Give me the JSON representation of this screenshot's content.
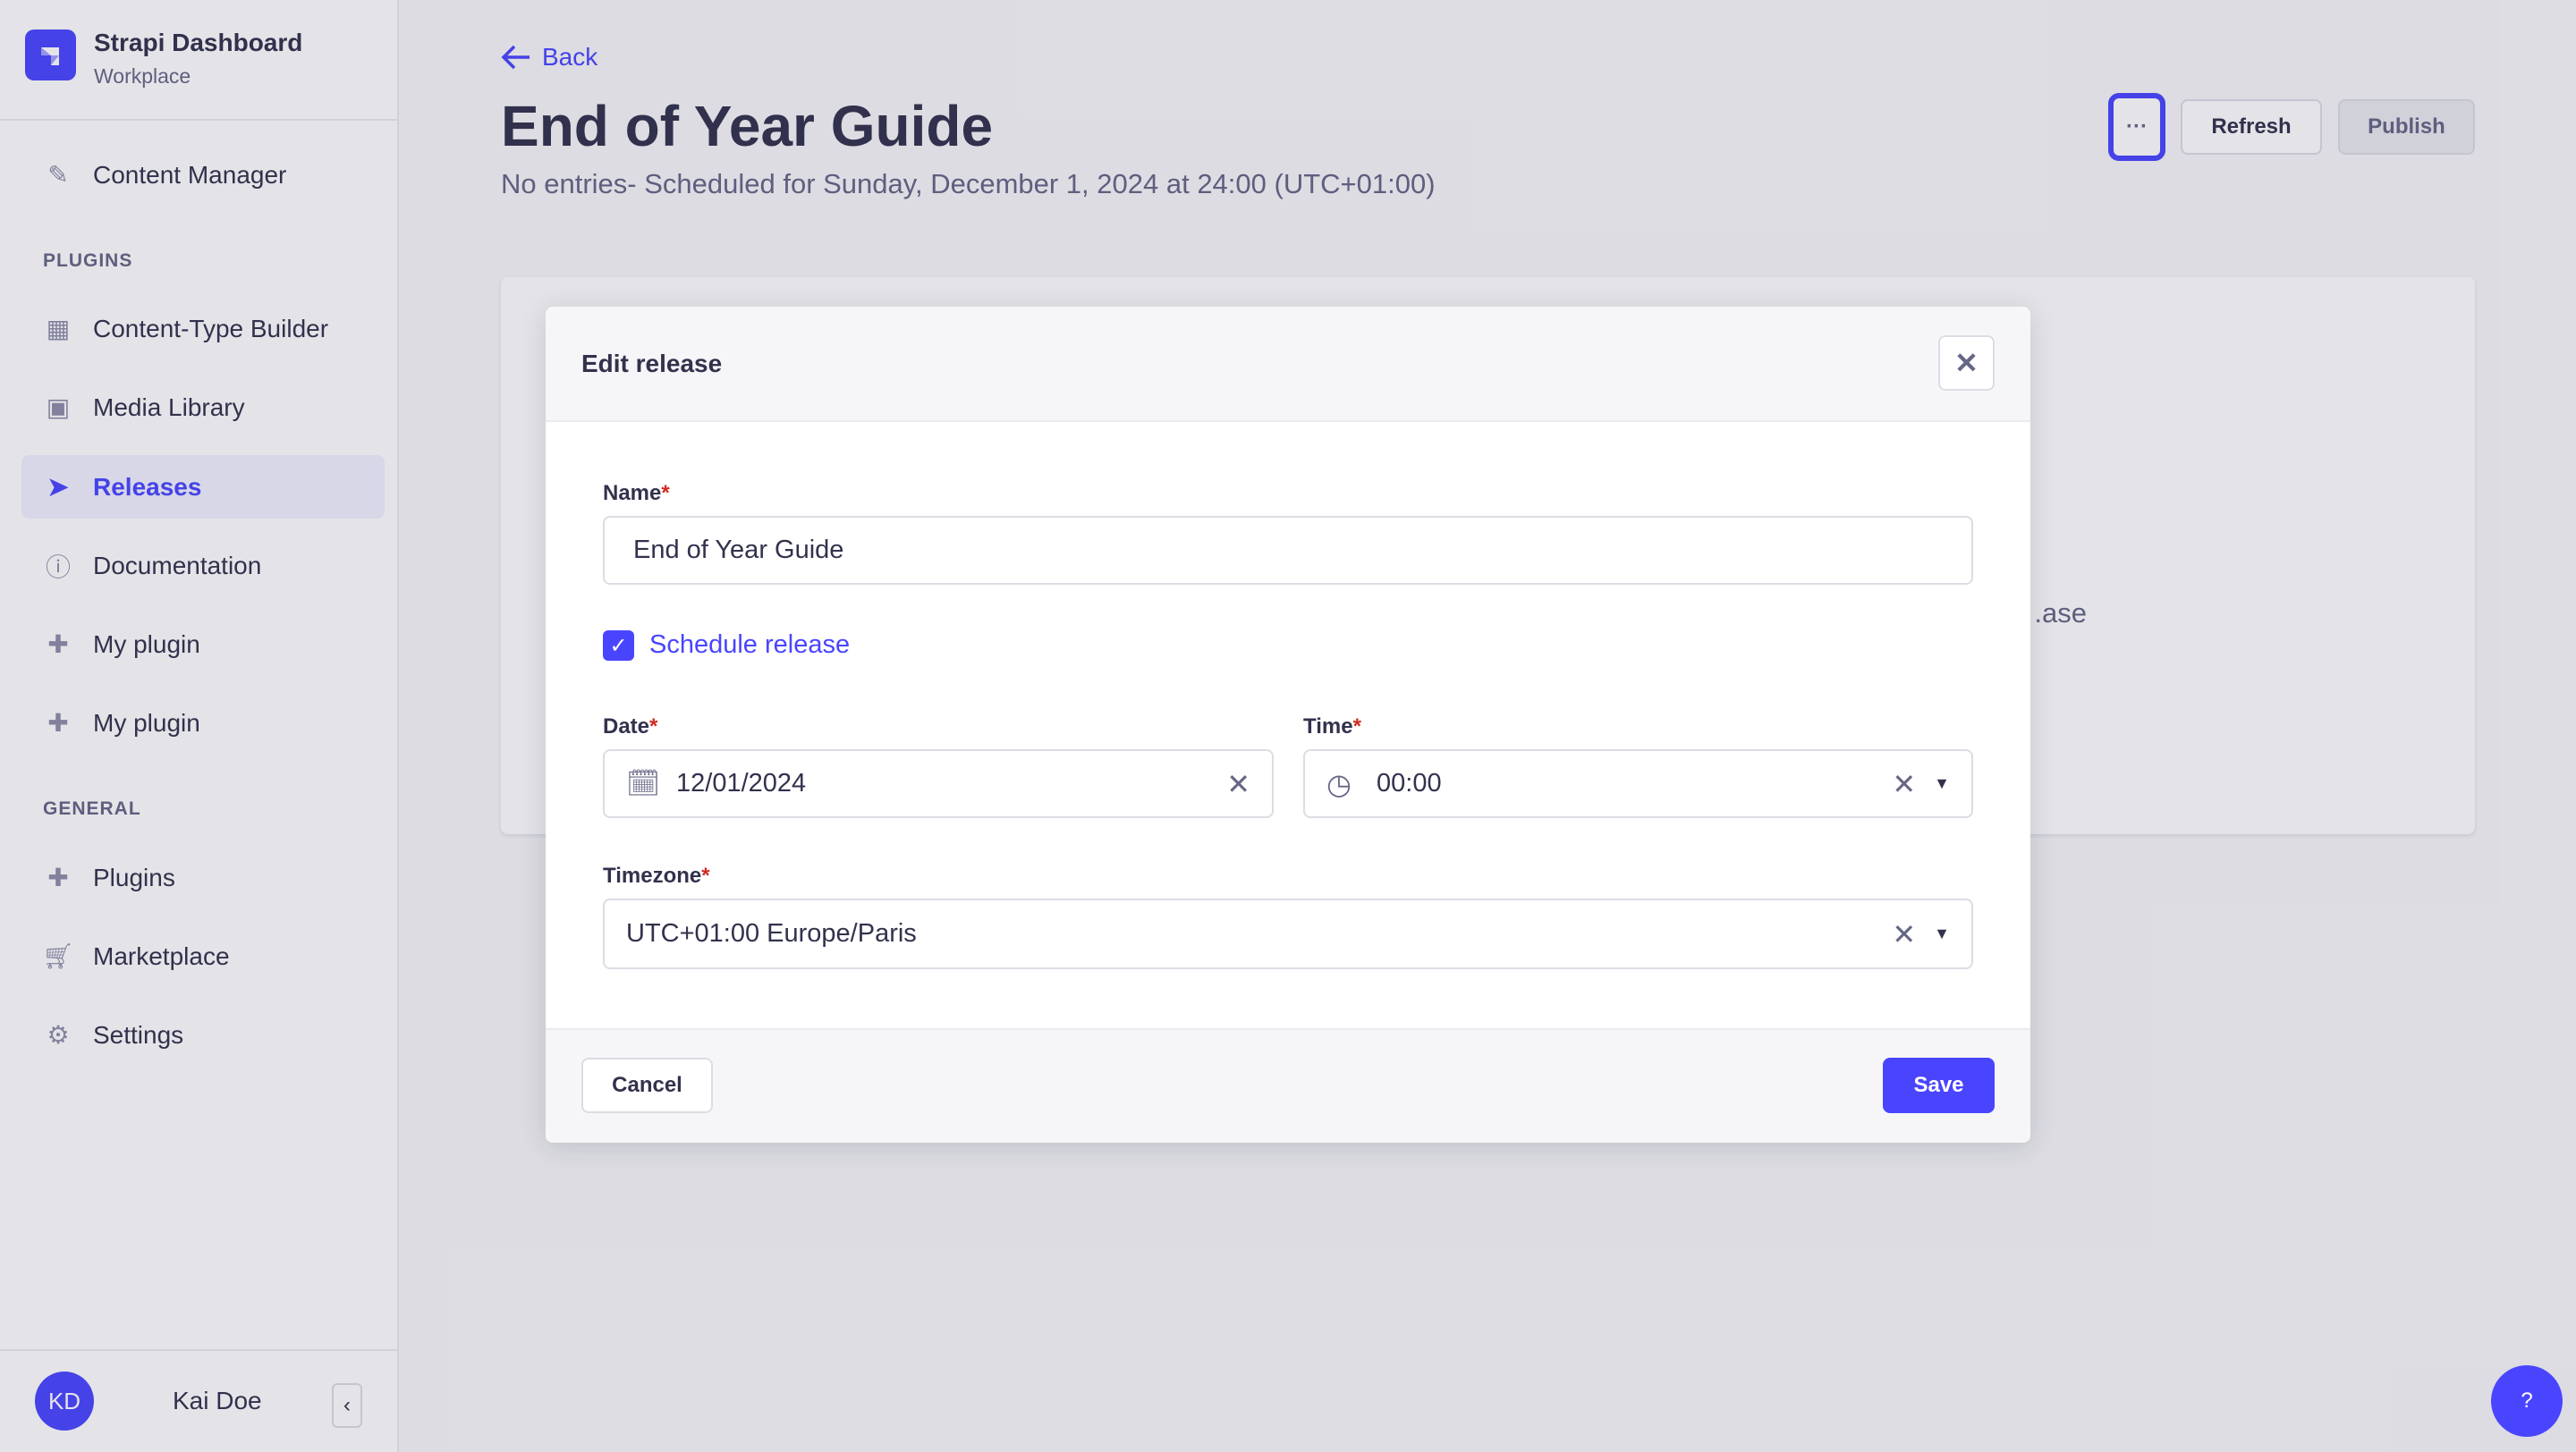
{
  "brand": {
    "title": "Strapi Dashboard",
    "subtitle": "Workplace"
  },
  "sidebar": {
    "top_items": [
      {
        "label": "Content Manager",
        "icon": "feather-icon"
      }
    ],
    "plugins_heading": "PLUGINS",
    "plugins": [
      {
        "label": "Content-Type Builder",
        "icon": "layout-icon"
      },
      {
        "label": "Media Library",
        "icon": "picture-icon"
      },
      {
        "label": "Releases",
        "icon": "paper-plane-icon",
        "active": true
      },
      {
        "label": "Documentation",
        "icon": "info-icon"
      },
      {
        "label": "My plugin",
        "icon": "puzzle-icon"
      },
      {
        "label": "My plugin",
        "icon": "puzzle-icon"
      }
    ],
    "general_heading": "GENERAL",
    "general": [
      {
        "label": "Plugins",
        "icon": "puzzle-icon"
      },
      {
        "label": "Marketplace",
        "icon": "cart-icon"
      },
      {
        "label": "Settings",
        "icon": "gear-icon"
      }
    ],
    "user": {
      "initials": "KD",
      "name": "Kai Doe"
    }
  },
  "header": {
    "back_label": "Back",
    "title": "End of Year Guide",
    "subtitle": "No entries- Scheduled for Sunday, December 1, 2024 at 24:00 (UTC+01:00)",
    "more_label": "···",
    "refresh_label": "Refresh",
    "publish_label": "Publish"
  },
  "background_card": {
    "text_fragment": "ase."
  },
  "modal": {
    "title": "Edit release",
    "name_label": "Name",
    "name_value": "End of Year Guide",
    "schedule_label": "Schedule release",
    "schedule_checked": true,
    "date_label": "Date",
    "date_value": "12/01/2024",
    "time_label": "Time",
    "time_value": "00:00",
    "timezone_label": "Timezone",
    "timezone_value": "UTC+01:00 Europe/Paris",
    "required_mark": "*",
    "cancel_label": "Cancel",
    "save_label": "Save"
  },
  "help": {
    "label": "?"
  },
  "colors": {
    "accent": "#4945ff",
    "required": "#d02b20"
  }
}
